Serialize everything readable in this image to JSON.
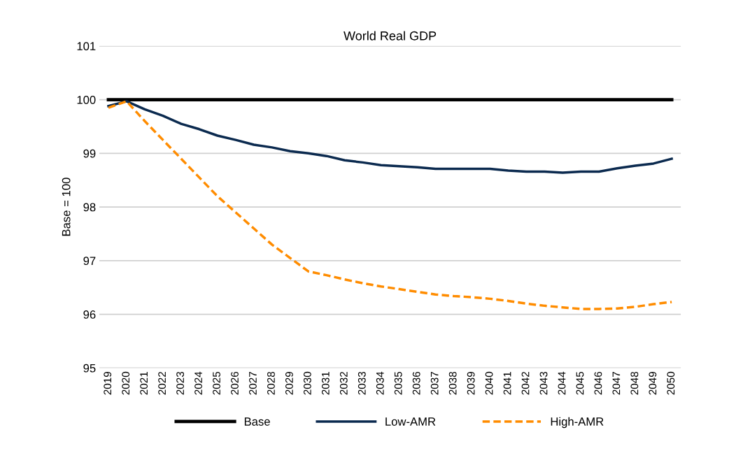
{
  "chart_data": {
    "type": "line",
    "title": "World Real GDP",
    "ylabel": "Base = 100",
    "categories": [
      "2019",
      "2020",
      "2021",
      "2022",
      "2023",
      "2024",
      "2025",
      "2026",
      "2027",
      "2028",
      "2029",
      "2030",
      "2031",
      "2032",
      "2033",
      "2034",
      "2035",
      "2036",
      "2037",
      "2038",
      "2039",
      "2040",
      "2041",
      "2042",
      "2043",
      "2044",
      "2045",
      "2046",
      "2047",
      "2048",
      "2049",
      "2050"
    ],
    "series": [
      {
        "name": "Base",
        "color": "#000000",
        "line_style": "solid",
        "values": [
          100,
          100,
          100,
          100,
          100,
          100,
          100,
          100,
          100,
          100,
          100,
          100,
          100,
          100,
          100,
          100,
          100,
          100,
          100,
          100,
          100,
          100,
          100,
          100,
          100,
          100,
          100,
          100,
          100,
          100,
          100,
          100
        ]
      },
      {
        "name": "Low-AMR",
        "color": "#0b2a4f",
        "line_style": "solid",
        "values": [
          99.88,
          99.97,
          99.82,
          99.7,
          99.55,
          99.45,
          99.33,
          99.25,
          99.16,
          99.11,
          99.04,
          99.0,
          98.95,
          98.87,
          98.83,
          98.78,
          98.76,
          98.74,
          98.71,
          98.71,
          98.71,
          98.71,
          98.68,
          98.66,
          98.66,
          98.64,
          98.66,
          98.66,
          98.72,
          98.77,
          98.81,
          98.9
        ]
      },
      {
        "name": "High-AMR",
        "color": "#ff8c00",
        "line_style": "dashed",
        "values": [
          99.85,
          99.97,
          99.6,
          99.25,
          98.9,
          98.55,
          98.2,
          97.9,
          97.6,
          97.3,
          97.05,
          96.8,
          96.73,
          96.65,
          96.58,
          96.52,
          96.47,
          96.42,
          96.37,
          96.34,
          96.32,
          96.29,
          96.25,
          96.2,
          96.16,
          96.13,
          96.1,
          96.1,
          96.11,
          96.14,
          96.19,
          96.23
        ]
      }
    ],
    "ylim": [
      95,
      101
    ],
    "yticks": [
      95,
      96,
      97,
      98,
      99,
      100,
      101
    ],
    "grid": "y",
    "legend": "bottom",
    "marker": "none"
  }
}
